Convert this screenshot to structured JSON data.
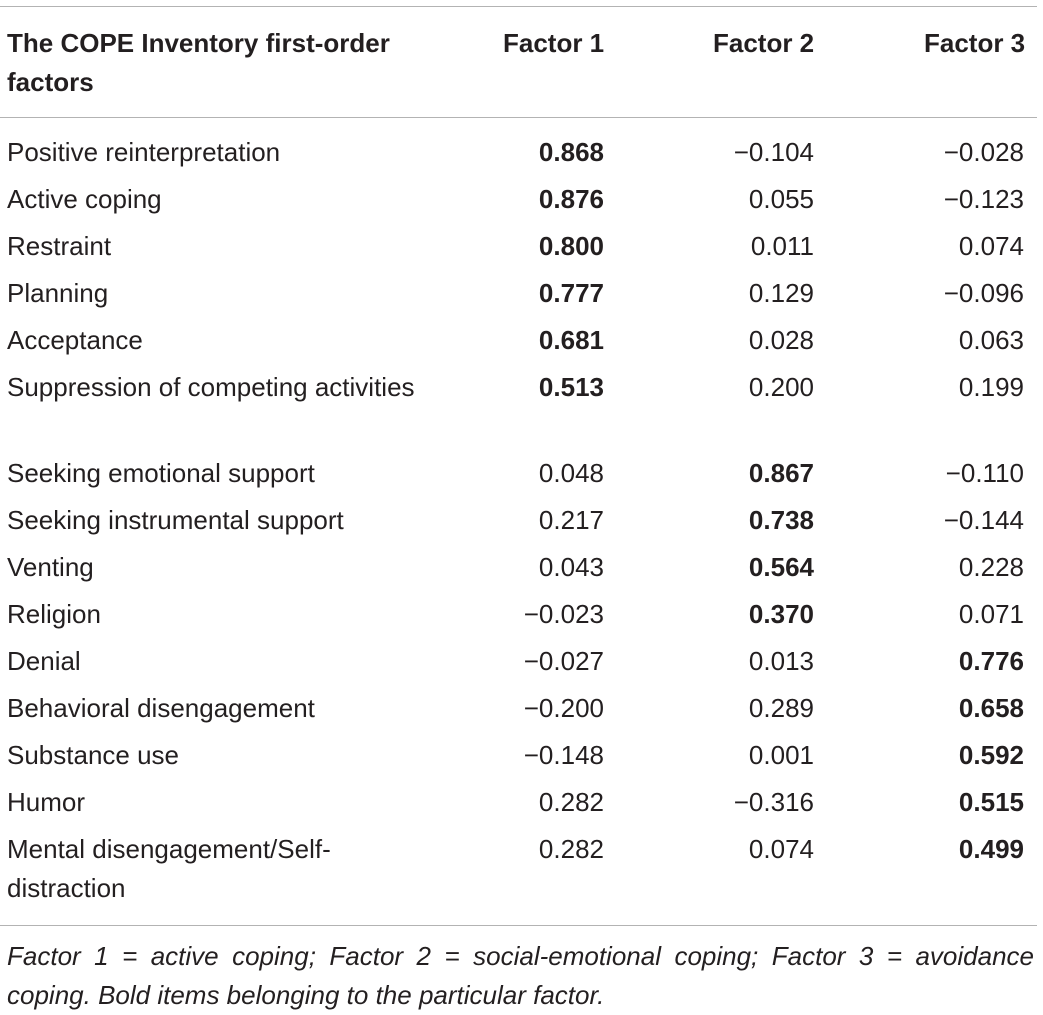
{
  "table": {
    "header": {
      "col_name": "The COPE Inventory first-order factors",
      "col_f1": "Factor 1",
      "col_f2": "Factor 2",
      "col_f3": "Factor 3"
    },
    "rows": [
      {
        "name": "Positive reinterpretation",
        "f1": "0.868",
        "f2": "−0.104",
        "f3": "−0.028",
        "bold": 1
      },
      {
        "name": "Active coping",
        "f1": "0.876",
        "f2": "0.055",
        "f3": "−0.123",
        "bold": 1
      },
      {
        "name": "Restraint",
        "f1": "0.800",
        "f2": "0.011",
        "f3": "0.074",
        "bold": 1
      },
      {
        "name": "Planning",
        "f1": "0.777",
        "f2": "0.129",
        "f3": "−0.096",
        "bold": 1
      },
      {
        "name": "Acceptance",
        "f1": "0.681",
        "f2": "0.028",
        "f3": "0.063",
        "bold": 1
      },
      {
        "name": "Suppression of competing activities",
        "f1": "0.513",
        "f2": "0.200",
        "f3": "0.199",
        "bold": 1,
        "wrap": true
      },
      {
        "name": "Seeking emotional support",
        "f1": "0.048",
        "f2": "0.867",
        "f3": "−0.110",
        "bold": 2
      },
      {
        "name": "Seeking instrumental support",
        "f1": "0.217",
        "f2": "0.738",
        "f3": "−0.144",
        "bold": 2
      },
      {
        "name": "Venting",
        "f1": "0.043",
        "f2": "0.564",
        "f3": "0.228",
        "bold": 2
      },
      {
        "name": "Religion",
        "f1": "−0.023",
        "f2": "0.370",
        "f3": "0.071",
        "bold": 2
      },
      {
        "name": "Denial",
        "f1": "−0.027",
        "f2": "0.013",
        "f3": "0.776",
        "bold": 3
      },
      {
        "name": "Behavioral disengagement",
        "f1": "−0.200",
        "f2": "0.289",
        "f3": "0.658",
        "bold": 3
      },
      {
        "name": "Substance use",
        "f1": "−0.148",
        "f2": "0.001",
        "f3": "0.592",
        "bold": 3
      },
      {
        "name": "Humor",
        "f1": "0.282",
        "f2": "−0.316",
        "f3": "0.515",
        "bold": 3
      },
      {
        "name": "Mental disengagement/Self-distraction",
        "f1": "0.282",
        "f2": "0.074",
        "f3": "0.499",
        "bold": 3,
        "wrap": true
      }
    ],
    "footnote": "Factor 1 = active coping; Factor 2 = social-emotional coping; Factor 3 = avoidance coping. Bold items belonging to the particular factor."
  }
}
